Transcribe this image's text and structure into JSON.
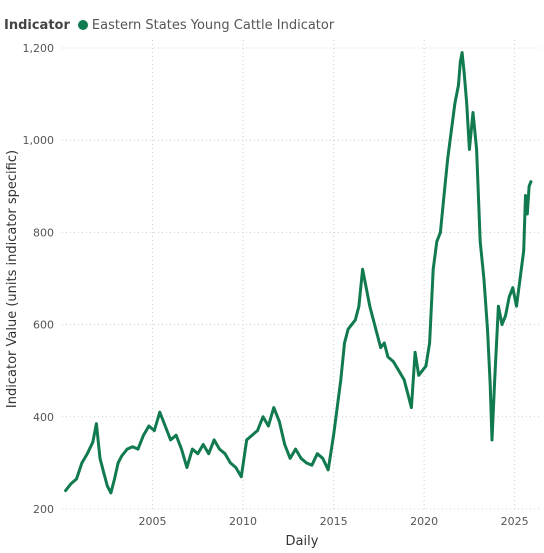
{
  "legend": {
    "title": "Indicator",
    "series_label": "Eastern States Young Cattle Indicator"
  },
  "colors": {
    "series": "#117a4f"
  },
  "chart_data": {
    "type": "line",
    "xlabel": "Daily",
    "ylabel": "Indicator Value (units indicator specific)",
    "xlim": [
      2000.0,
      2026.4
    ],
    "ylim": [
      200,
      1200
    ],
    "x_ticks": [
      2005,
      2010,
      2015,
      2020,
      2025
    ],
    "y_ticks": [
      200,
      400,
      600,
      800,
      1000,
      1200
    ],
    "y_tick_labels": [
      "200",
      "400",
      "600",
      "800",
      "1,000",
      "1,200"
    ],
    "grid": true,
    "legend_position": "top-left",
    "series": [
      {
        "name": "Eastern States Young Cattle Indicator",
        "x": [
          2000.2,
          2000.5,
          2000.8,
          2001.1,
          2001.4,
          2001.7,
          2001.9,
          2002.1,
          2002.3,
          2002.5,
          2002.7,
          2002.9,
          2003.1,
          2003.3,
          2003.6,
          2003.9,
          2004.2,
          2004.5,
          2004.8,
          2005.1,
          2005.4,
          2005.7,
          2006.0,
          2006.3,
          2006.6,
          2006.9,
          2007.2,
          2007.5,
          2007.8,
          2008.1,
          2008.4,
          2008.7,
          2009.0,
          2009.3,
          2009.6,
          2009.9,
          2010.2,
          2010.5,
          2010.8,
          2011.1,
          2011.4,
          2011.7,
          2012.0,
          2012.3,
          2012.6,
          2012.9,
          2013.2,
          2013.5,
          2013.8,
          2014.1,
          2014.4,
          2014.7,
          2015.0,
          2015.2,
          2015.4,
          2015.6,
          2015.8,
          2016.0,
          2016.2,
          2016.4,
          2016.6,
          2016.8,
          2017.0,
          2017.2,
          2017.4,
          2017.6,
          2017.8,
          2018.0,
          2018.3,
          2018.6,
          2018.9,
          2019.1,
          2019.3,
          2019.5,
          2019.7,
          2019.9,
          2020.1,
          2020.3,
          2020.5,
          2020.7,
          2020.9,
          2021.1,
          2021.3,
          2021.5,
          2021.7,
          2021.9,
          2022.0,
          2022.1,
          2022.2,
          2022.35,
          2022.5,
          2022.7,
          2022.9,
          2023.1,
          2023.3,
          2023.5,
          2023.65,
          2023.75,
          2023.9,
          2024.1,
          2024.3,
          2024.5,
          2024.7,
          2024.9,
          2025.1,
          2025.3,
          2025.5,
          2025.6,
          2025.7,
          2025.8,
          2025.9
        ],
        "values": [
          240,
          255,
          265,
          300,
          320,
          345,
          385,
          310,
          280,
          250,
          235,
          265,
          300,
          315,
          330,
          335,
          330,
          360,
          380,
          370,
          410,
          380,
          350,
          360,
          330,
          290,
          330,
          320,
          340,
          320,
          350,
          330,
          320,
          300,
          290,
          270,
          350,
          360,
          370,
          400,
          380,
          420,
          390,
          340,
          310,
          330,
          310,
          300,
          295,
          320,
          310,
          285,
          360,
          420,
          480,
          560,
          590,
          600,
          610,
          640,
          720,
          680,
          640,
          610,
          580,
          550,
          560,
          530,
          520,
          500,
          480,
          450,
          420,
          540,
          490,
          500,
          510,
          560,
          720,
          780,
          800,
          880,
          960,
          1020,
          1080,
          1120,
          1170,
          1190,
          1150,
          1080,
          980,
          1060,
          980,
          780,
          700,
          590,
          470,
          350,
          480,
          640,
          600,
          620,
          660,
          680,
          640,
          700,
          760,
          880,
          840,
          900,
          910
        ]
      }
    ]
  }
}
